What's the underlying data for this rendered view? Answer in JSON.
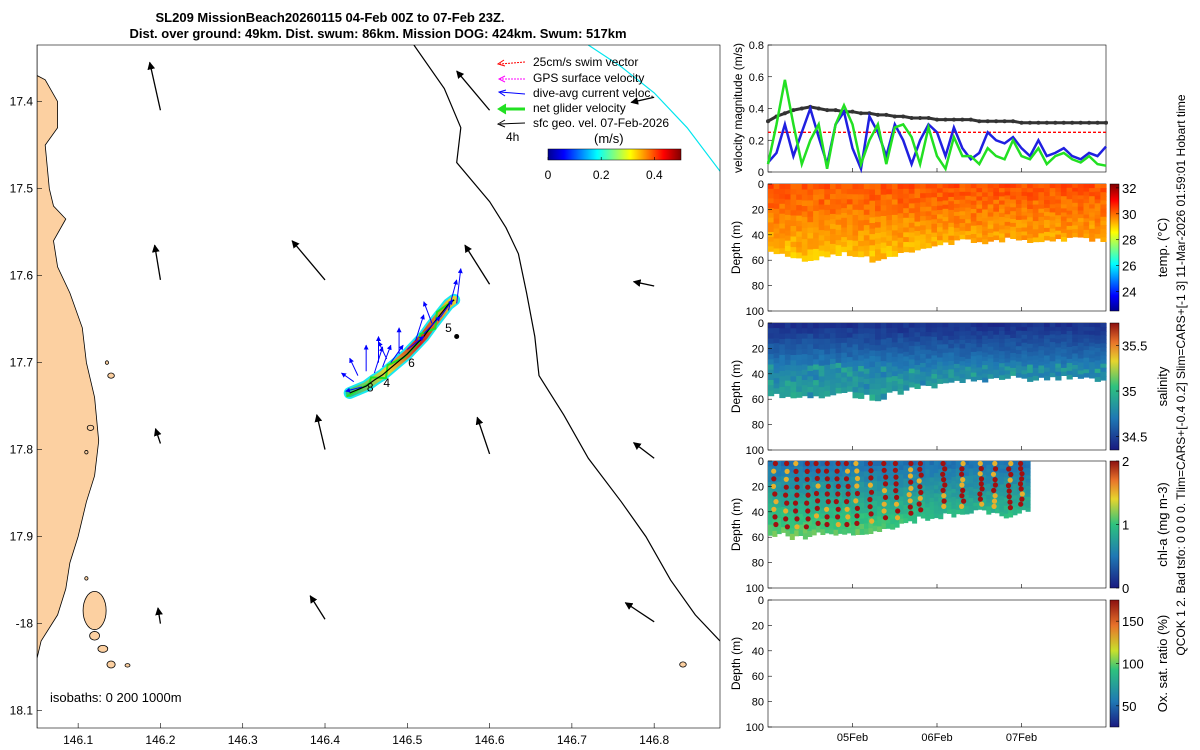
{
  "header": {
    "title_line1": "SL209 MissionBeach20260115 04-Feb 00Z to 07-Feb 23Z.",
    "title_line2": "Dist. over ground: 49km. Dist. swum: 86km. Mission DOG: 424km. Swum: 517km"
  },
  "side_note": "QCOK 1  2. Bad tsfo: 0  0  0  0. Tlim=CARS+[-0.4 0.2] Slim=CARS+[-1 3] 11-Mar-2026 01:59:01 Hobart time",
  "colors": {
    "land": "#fcd0a1",
    "swim_vector": "#ff0000",
    "gps_velocity": "#ff00ff",
    "current": "#0000ff",
    "net_velocity": "#22e022",
    "geo_velocity": "#000000",
    "isobath_200": "#000000",
    "isobath_1000": "#00e5ee"
  },
  "chart_data": [
    {
      "id": "map",
      "type": "map",
      "xlim": [
        146.05,
        146.88
      ],
      "ylim": [
        -18.12,
        -17.335
      ],
      "x_ticks": [
        146.1,
        146.2,
        146.3,
        146.4,
        146.5,
        146.6,
        146.7,
        146.8
      ],
      "y_ticks": [
        -18.1,
        -18.0,
        -17.9,
        -17.8,
        -17.7,
        -17.6,
        -17.5,
        -17.4
      ],
      "x_tick_labels": [
        "146.1",
        "146.2",
        "146.3",
        "146.4",
        "146.5",
        "146.6",
        "146.7",
        "146.8"
      ],
      "y_tick_labels": [
        "18.1",
        "-18",
        "17.9",
        "17.8",
        "17.7",
        "17.6",
        "17.5",
        "17.4"
      ],
      "legend": [
        {
          "key": "swim_vector",
          "label": "25cm/s swim vector"
        },
        {
          "key": "gps_velocity",
          "label": "GPS surface velocity"
        },
        {
          "key": "current",
          "label": "dive-avg current veloc."
        },
        {
          "key": "net_velocity",
          "label": "net glider velocity"
        },
        {
          "key": "geo_velocity",
          "label": "sfc geo. vel. 07-Feb-2026"
        }
      ],
      "legend_note": "4h",
      "colorbar": {
        "label": "(m/s)",
        "range": [
          0,
          0.5
        ],
        "ticks": [
          0,
          0.2,
          0.4
        ],
        "tick_labels": [
          "0",
          "0.2",
          "0.4"
        ]
      },
      "isobaths_label": "isobaths: 0   200  1000m",
      "track_labels": [
        {
          "text": "5",
          "lon": 146.55,
          "lat": -17.665
        },
        {
          "text": "6",
          "lon": 146.505,
          "lat": -17.705
        },
        {
          "text": "4",
          "lon": 146.475,
          "lat": -17.728
        },
        {
          "text": "8",
          "lon": 146.455,
          "lat": -17.733
        }
      ],
      "track": [
        [
          146.43,
          -17.735
        ],
        [
          146.45,
          -17.727
        ],
        [
          146.46,
          -17.72
        ],
        [
          146.47,
          -17.714
        ],
        [
          146.48,
          -17.706
        ],
        [
          146.49,
          -17.698
        ],
        [
          146.5,
          -17.69
        ],
        [
          146.51,
          -17.68
        ],
        [
          146.52,
          -17.67
        ],
        [
          146.53,
          -17.657
        ],
        [
          146.54,
          -17.645
        ],
        [
          146.55,
          -17.633
        ],
        [
          146.557,
          -17.628
        ]
      ],
      "current_vectors": [
        [
          146.44,
          -17.715,
          -0.01,
          0.02
        ],
        [
          146.45,
          -17.71,
          0.0,
          0.03
        ],
        [
          146.46,
          -17.712,
          0.01,
          0.03
        ],
        [
          146.47,
          -17.705,
          0.01,
          0.025
        ],
        [
          146.48,
          -17.7,
          0.015,
          0.02
        ],
        [
          146.49,
          -17.69,
          0.0,
          0.03
        ],
        [
          146.5,
          -17.685,
          0.02,
          0.015
        ],
        [
          146.51,
          -17.675,
          0.01,
          0.03
        ],
        [
          146.52,
          -17.667,
          0.02,
          0.02
        ],
        [
          146.53,
          -17.655,
          -0.01,
          0.025
        ],
        [
          146.54,
          -17.648,
          0.015,
          0.02
        ],
        [
          146.55,
          -17.64,
          0.01,
          0.035
        ],
        [
          146.56,
          -17.632,
          0.005,
          0.04
        ],
        [
          146.435,
          -17.722,
          -0.015,
          0.01
        ],
        [
          146.445,
          -17.728,
          -0.02,
          -0.005
        ],
        [
          146.465,
          -17.7,
          0.0,
          0.03
        ],
        [
          146.475,
          -17.696,
          -0.01,
          0.02
        ]
      ],
      "geo_vectors": [
        [
          146.2,
          -17.41,
          -0.013,
          0.055
        ],
        [
          146.2,
          -17.605,
          -0.007,
          0.04
        ],
        [
          146.2,
          -17.793,
          -0.006,
          0.017
        ],
        [
          146.2,
          -18.0,
          -0.003,
          0.018
        ],
        [
          146.4,
          -17.605,
          -0.04,
          0.045
        ],
        [
          146.4,
          -17.8,
          -0.01,
          0.04
        ],
        [
          146.4,
          -17.995,
          -0.018,
          0.027
        ],
        [
          146.6,
          -17.41,
          -0.04,
          0.045
        ],
        [
          146.6,
          -17.61,
          -0.03,
          0.045
        ],
        [
          146.6,
          -17.805,
          -0.015,
          0.042
        ],
        [
          146.8,
          -17.612,
          -0.025,
          0.005
        ],
        [
          146.8,
          -17.81,
          -0.025,
          0.018
        ],
        [
          146.8,
          -17.998,
          -0.035,
          0.022
        ],
        [
          146.8,
          -17.395,
          -0.028,
          -0.006
        ],
        [
          146.56,
          -17.67,
          0.0,
          0.0
        ]
      ],
      "isobath_200": [
        [
          146.508,
          -17.335
        ],
        [
          146.545,
          -17.385
        ],
        [
          146.565,
          -17.43
        ],
        [
          146.56,
          -17.47
        ],
        [
          146.6,
          -17.515
        ],
        [
          146.62,
          -17.545
        ],
        [
          146.635,
          -17.575
        ],
        [
          146.645,
          -17.62
        ],
        [
          146.655,
          -17.67
        ],
        [
          146.66,
          -17.715
        ],
        [
          146.69,
          -17.76
        ],
        [
          146.72,
          -17.81
        ],
        [
          146.76,
          -17.86
        ],
        [
          146.79,
          -17.9
        ],
        [
          146.82,
          -17.95
        ],
        [
          146.85,
          -17.99
        ],
        [
          146.88,
          -18.02
        ]
      ],
      "isobath_1000": [
        [
          146.72,
          -17.335
        ],
        [
          146.76,
          -17.36
        ],
        [
          146.8,
          -17.39
        ],
        [
          146.84,
          -17.43
        ],
        [
          146.88,
          -17.48
        ]
      ],
      "coastline": [
        [
          146.05,
          -17.335
        ],
        [
          146.05,
          -17.37
        ],
        [
          146.06,
          -17.375
        ],
        [
          146.075,
          -17.4
        ],
        [
          146.075,
          -17.43
        ],
        [
          146.06,
          -17.45
        ],
        [
          146.065,
          -17.5
        ],
        [
          146.07,
          -17.52
        ],
        [
          146.085,
          -17.535
        ],
        [
          146.07,
          -17.56
        ],
        [
          146.075,
          -17.59
        ],
        [
          146.09,
          -17.62
        ],
        [
          146.105,
          -17.66
        ],
        [
          146.11,
          -17.7
        ],
        [
          146.12,
          -17.74
        ],
        [
          146.125,
          -17.79
        ],
        [
          146.12,
          -17.83
        ],
        [
          146.11,
          -17.86
        ],
        [
          146.1,
          -17.9
        ],
        [
          146.09,
          -17.93
        ],
        [
          146.085,
          -17.96
        ],
        [
          146.075,
          -17.99
        ],
        [
          146.055,
          -18.02
        ],
        [
          146.05,
          -18.04
        ]
      ],
      "islands": [
        [
          146.12,
          -17.985,
          0.014,
          0.022
        ],
        [
          146.12,
          -18.014,
          0.006,
          0.005
        ],
        [
          146.13,
          -18.029,
          0.006,
          0.004
        ],
        [
          146.14,
          -18.047,
          0.005,
          0.004
        ],
        [
          146.16,
          -18.048,
          0.003,
          0.002
        ],
        [
          146.14,
          -17.715,
          0.004,
          0.003
        ],
        [
          146.135,
          -17.7,
          0.002,
          0.002
        ],
        [
          146.115,
          -17.775,
          0.004,
          0.003
        ],
        [
          146.11,
          -17.803,
          0.002,
          0.002
        ],
        [
          146.835,
          -18.047,
          0.004,
          0.003
        ],
        [
          146.11,
          -17.948,
          0.002,
          0.002
        ]
      ]
    },
    {
      "id": "velocity",
      "type": "line",
      "ylabel": "velocity magnitude (m/s)",
      "ylim": [
        0,
        0.8
      ],
      "y_ticks": [
        0,
        0.2,
        0.4,
        0.6,
        0.8
      ],
      "y_tick_labels": [
        "0",
        "0.2",
        "0.4",
        "0.6",
        "0.8"
      ],
      "t": [
        0,
        0.1,
        0.2,
        0.3,
        0.4,
        0.5,
        0.6,
        0.7,
        0.8,
        0.9,
        1,
        1.1,
        1.2,
        1.3,
        1.4,
        1.5,
        1.6,
        1.7,
        1.8,
        1.9,
        2,
        2.1,
        2.2,
        2.3,
        2.4,
        2.5,
        2.6,
        2.7,
        2.8,
        2.9,
        3,
        3.1,
        3.2,
        3.3,
        3.4,
        3.5,
        3.6,
        3.7,
        3.8,
        3.9,
        4
      ],
      "series": [
        {
          "name": "swim",
          "values": [
            0.25,
            0.25,
            0.25,
            0.25,
            0.25,
            0.25,
            0.25,
            0.25,
            0.25,
            0.25,
            0.25,
            0.25,
            0.25,
            0.25,
            0.25,
            0.25,
            0.25,
            0.25,
            0.25,
            0.25,
            0.25,
            0.25,
            0.25,
            0.25,
            0.25,
            0.25,
            0.25,
            0.25,
            0.25,
            0.25,
            0.25,
            0.25,
            0.25,
            0.25,
            0.25,
            0.25,
            0.25,
            0.25,
            0.25,
            0.25,
            0.25
          ]
        },
        {
          "name": "geostrophic",
          "values": [
            0.32,
            0.35,
            0.37,
            0.39,
            0.4,
            0.41,
            0.4,
            0.39,
            0.39,
            0.38,
            0.38,
            0.37,
            0.37,
            0.36,
            0.36,
            0.35,
            0.35,
            0.34,
            0.34,
            0.34,
            0.33,
            0.33,
            0.33,
            0.33,
            0.33,
            0.32,
            0.32,
            0.32,
            0.32,
            0.32,
            0.31,
            0.31,
            0.31,
            0.31,
            0.31,
            0.31,
            0.31,
            0.31,
            0.31,
            0.31,
            0.31
          ]
        },
        {
          "name": "current",
          "values": [
            0.06,
            0.12,
            0.3,
            0.1,
            0.25,
            0.4,
            0.22,
            0.05,
            0.3,
            0.38,
            0.15,
            0.02,
            0.35,
            0.25,
            0.1,
            0.3,
            0.2,
            0.05,
            0.2,
            0.3,
            0.25,
            0.1,
            0.28,
            0.15,
            0.08,
            0.12,
            0.25,
            0.2,
            0.18,
            0.22,
            0.15,
            0.1,
            0.2,
            0.1,
            0.12,
            0.15,
            0.1,
            0.08,
            0.12,
            0.1,
            0.16
          ]
        },
        {
          "name": "net",
          "values": [
            0.05,
            0.3,
            0.58,
            0.3,
            0.05,
            0.2,
            0.3,
            0.02,
            0.3,
            0.42,
            0.3,
            0.05,
            0.2,
            0.3,
            0.05,
            0.28,
            0.3,
            0.22,
            0.05,
            0.28,
            0.1,
            0.02,
            0.22,
            0.1,
            0.1,
            0.05,
            0.15,
            0.1,
            0.08,
            0.2,
            0.1,
            0.08,
            0.15,
            0.05,
            0.1,
            0.12,
            0.08,
            0.06,
            0.1,
            0.05,
            0.04
          ]
        }
      ]
    },
    {
      "id": "temperature",
      "type": "heatmap",
      "ylabel": "Depth (m)",
      "ylim": [
        100,
        0
      ],
      "y_ticks": [
        0,
        20,
        40,
        60,
        80,
        100
      ],
      "y_tick_labels": [
        "0",
        "20",
        "40",
        "60",
        "80",
        "100"
      ],
      "colorbar": {
        "label": "temp. (°C)",
        "range": [
          22.5,
          32.3
        ],
        "ticks": [
          24,
          26,
          28,
          30,
          32
        ],
        "tick_labels": [
          "24",
          "26",
          "28",
          "30",
          "32"
        ]
      },
      "surface_value": 30.3,
      "bottom_value": 29.1,
      "profile_depth": [
        53,
        57,
        60,
        57,
        55,
        58,
        60,
        55,
        52,
        50,
        47,
        45,
        46,
        44,
        43,
        45,
        44,
        43,
        42,
        44
      ]
    },
    {
      "id": "salinity",
      "type": "heatmap",
      "ylabel": "Depth (m)",
      "ylim": [
        100,
        0
      ],
      "y_ticks": [
        0,
        20,
        40,
        60,
        80,
        100
      ],
      "y_tick_labels": [
        "0",
        "20",
        "40",
        "60",
        "80",
        "100"
      ],
      "colorbar": {
        "label": "salinity",
        "range": [
          34.35,
          35.75
        ],
        "ticks": [
          34.5,
          35,
          35.5
        ],
        "tick_labels": [
          "34.5",
          "35",
          "35.5"
        ]
      },
      "surface_value": 34.42,
      "bottom_value": 34.95,
      "profile_depth": [
        57,
        58,
        59,
        57,
        55,
        58,
        60,
        55,
        52,
        50,
        47,
        45,
        46,
        44,
        43,
        45,
        44,
        43,
        42,
        44
      ]
    },
    {
      "id": "chlorophyll",
      "type": "heatmap",
      "ylabel": "Depth (m)",
      "ylim": [
        100,
        0
      ],
      "y_ticks": [
        0,
        20,
        40,
        60,
        80,
        100
      ],
      "y_tick_labels": [
        "0",
        "20",
        "40",
        "60",
        "80",
        "100"
      ],
      "colorbar": {
        "label": "chl-a (mg m-3)",
        "range": [
          0,
          2
        ],
        "ticks": [
          0,
          1,
          2
        ],
        "tick_labels": [
          "0",
          "1",
          "2"
        ]
      },
      "t_end": 3.1,
      "surface_value": 0.45,
      "bottom_value": 1.15,
      "profile_depth": [
        58,
        60,
        60,
        57,
        58,
        58,
        57,
        55,
        52,
        48,
        45,
        45,
        42,
        42,
        40,
        42,
        43,
        40
      ]
    },
    {
      "id": "oxygen",
      "type": "heatmap",
      "ylabel": "Depth (m)",
      "ylim": [
        100,
        0
      ],
      "y_ticks": [
        0,
        20,
        40,
        60,
        80,
        100
      ],
      "y_tick_labels": [
        "0",
        "20",
        "40",
        "60",
        "80",
        "100"
      ],
      "colorbar": {
        "label": "Ox. sat. ratio (%)",
        "range": [
          25,
          175
        ],
        "ticks": [
          50,
          100,
          150
        ],
        "tick_labels": [
          "50",
          "100",
          "150"
        ]
      },
      "x_ticks": [
        1,
        2,
        3
      ],
      "x_tick_labels": [
        "05Feb",
        "06Feb",
        "07Feb"
      ]
    }
  ]
}
